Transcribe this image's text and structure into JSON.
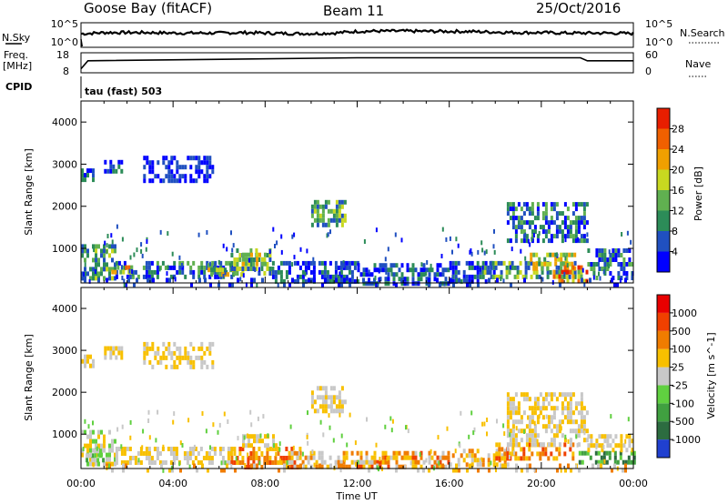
{
  "header": {
    "station": "Goose Bay (fitACF)",
    "beam": "Beam 11",
    "date": "25/Oct/2016"
  },
  "noise_panel": {
    "left_label": "N.Sky",
    "right_label": "N.Search",
    "left_ticks": [
      "10^5",
      "10^0"
    ],
    "right_ticks": [
      "10^5",
      "10^0"
    ]
  },
  "freq_panel": {
    "left_label_1": "Freq.",
    "left_label_2": "[MHz]",
    "right_label": "Nave",
    "left_ticks": [
      "18",
      "8"
    ],
    "right_ticks": [
      "60",
      "0"
    ]
  },
  "cpid": {
    "label": "CPID",
    "value": "tau (fast) 503"
  },
  "chart_data": [
    {
      "type": "line",
      "name": "noise",
      "x_hours": [
        0,
        1,
        2,
        3,
        4,
        5,
        6,
        7,
        8,
        9,
        10,
        11,
        12,
        13,
        14,
        15,
        16,
        17,
        18,
        19,
        20,
        21,
        22,
        23,
        24
      ],
      "y_frac": [
        0.55,
        0.6,
        0.6,
        0.6,
        0.58,
        0.58,
        0.58,
        0.6,
        0.58,
        0.56,
        0.56,
        0.58,
        0.65,
        0.66,
        0.66,
        0.65,
        0.65,
        0.64,
        0.62,
        0.6,
        0.6,
        0.58,
        0.58,
        0.58,
        0.56
      ]
    },
    {
      "type": "line",
      "name": "frequency",
      "x_hours": [
        0,
        0.3,
        12,
        21.7,
        22,
        24
      ],
      "y_frac": [
        0.2,
        0.6,
        0.75,
        0.75,
        0.6,
        0.6
      ]
    },
    {
      "type": "heatmap",
      "title": "Power",
      "xlabel": "Time UT",
      "ylabel": "Slant Range [km]",
      "colorbar_label": "Power [dB]",
      "colorbar_ticks": [
        "28",
        "24",
        "20",
        "16",
        "12",
        "8",
        "4"
      ],
      "colors": [
        "#0000ff",
        "#2050c0",
        "#2c8c58",
        "#60b050",
        "#c8d820",
        "#f0a000",
        "#f06000",
        "#e81e00"
      ],
      "x_ticks": [
        "00:00",
        "04:00",
        "08:00",
        "12:00",
        "16:00",
        "20:00",
        "00:00"
      ],
      "y_ticks": [
        "1000",
        "2000",
        "3000",
        "4000"
      ],
      "xlim": [
        0,
        24
      ],
      "ylim": [
        180,
        4500
      ],
      "regions": [
        {
          "x": [
            0,
            1.5
          ],
          "y": [
            300,
            1100
          ],
          "level": [
            1,
            4
          ]
        },
        {
          "x": [
            1.5,
            4
          ],
          "y": [
            300,
            700
          ],
          "level": [
            0,
            3
          ]
        },
        {
          "x": [
            1.2,
            2.2
          ],
          "y": [
            400,
            600
          ],
          "level": [
            3,
            6
          ]
        },
        {
          "x": [
            4,
            6.5
          ],
          "y": [
            350,
            700
          ],
          "level": [
            0,
            3
          ]
        },
        {
          "x": [
            5.5,
            7
          ],
          "y": [
            350,
            650
          ],
          "level": [
            2,
            5
          ]
        },
        {
          "x": [
            6.5,
            8.3
          ],
          "y": [
            400,
            1000
          ],
          "level": [
            1,
            4
          ]
        },
        {
          "x": [
            7,
            8
          ],
          "y": [
            600,
            900
          ],
          "level": [
            3,
            5
          ]
        },
        {
          "x": [
            8.3,
            12
          ],
          "y": [
            200,
            700
          ],
          "level": [
            0,
            2
          ]
        },
        {
          "x": [
            10,
            11.5
          ],
          "y": [
            1600,
            2150
          ],
          "level": [
            1,
            4
          ]
        },
        {
          "x": [
            12,
            16
          ],
          "y": [
            200,
            650
          ],
          "level": [
            0,
            2
          ]
        },
        {
          "x": [
            16,
            18
          ],
          "y": [
            220,
            700
          ],
          "level": [
            0,
            2
          ]
        },
        {
          "x": [
            17.5,
            21.5
          ],
          "y": [
            300,
            700
          ],
          "level": [
            1,
            4
          ]
        },
        {
          "x": [
            19.5,
            21.5
          ],
          "y": [
            500,
            900
          ],
          "level": [
            2,
            5
          ]
        },
        {
          "x": [
            18.5,
            22
          ],
          "y": [
            1200,
            2100
          ],
          "level": [
            0,
            3
          ]
        },
        {
          "x": [
            20.5,
            22
          ],
          "y": [
            250,
            600
          ],
          "level": [
            3,
            7
          ]
        },
        {
          "x": [
            22,
            24
          ],
          "y": [
            300,
            1000
          ],
          "level": [
            0,
            3
          ]
        },
        {
          "x": [
            1,
            1.8
          ],
          "y": [
            2800,
            3100
          ],
          "level": [
            0,
            2
          ]
        },
        {
          "x": [
            2.7,
            5.7
          ],
          "y": [
            2600,
            3200
          ],
          "level": [
            0,
            1
          ]
        },
        {
          "x": [
            0,
            0.5
          ],
          "y": [
            2600,
            2900
          ],
          "level": [
            0,
            2
          ]
        },
        {
          "x": [
            0,
            24
          ],
          "y": [
            180,
            300
          ],
          "level": [
            0,
            1
          ]
        }
      ]
    },
    {
      "type": "heatmap",
      "title": "Velocity",
      "xlabel": "Time UT",
      "ylabel": "Slant Range [km]",
      "colorbar_label": "Velocity [m s^-1]",
      "colorbar_ticks": [
        "1000",
        "500",
        "100",
        "25",
        "-25",
        "-100",
        "-500",
        "-1000"
      ],
      "colors": [
        "#2040d0",
        "#2c6c40",
        "#40a040",
        "#60d040",
        "#c8c8c8",
        "#f8c000",
        "#f07c00",
        "#f04000",
        "#e80000"
      ],
      "x_ticks": [
        "00:00",
        "04:00",
        "08:00",
        "12:00",
        "16:00",
        "20:00",
        "00:00"
      ],
      "y_ticks": [
        "1000",
        "2000",
        "3000",
        "4000"
      ],
      "xlim": [
        0,
        24
      ],
      "ylim": [
        180,
        4500
      ],
      "regions": [
        {
          "x": [
            0,
            1.5
          ],
          "y": [
            300,
            1100
          ],
          "level": [
            3,
            5
          ]
        },
        {
          "x": [
            0.2,
            1
          ],
          "y": [
            400,
            650
          ],
          "level": [
            2,
            4
          ]
        },
        {
          "x": [
            1.5,
            6.5
          ],
          "y": [
            300,
            700
          ],
          "level": [
            4,
            5
          ]
        },
        {
          "x": [
            6.5,
            9.5
          ],
          "y": [
            250,
            700
          ],
          "level": [
            5,
            7
          ]
        },
        {
          "x": [
            7,
            8.5
          ],
          "y": [
            700,
            1000
          ],
          "level": [
            4,
            5
          ]
        },
        {
          "x": [
            9,
            12
          ],
          "y": [
            200,
            600
          ],
          "level": [
            4,
            6
          ]
        },
        {
          "x": [
            10,
            11.5
          ],
          "y": [
            1600,
            2150
          ],
          "level": [
            4,
            5
          ]
        },
        {
          "x": [
            12,
            16
          ],
          "y": [
            200,
            600
          ],
          "level": [
            4,
            7
          ]
        },
        {
          "x": [
            16,
            18.5
          ],
          "y": [
            250,
            650
          ],
          "level": [
            4,
            6
          ]
        },
        {
          "x": [
            18,
            21.5
          ],
          "y": [
            400,
            800
          ],
          "level": [
            5,
            7
          ]
        },
        {
          "x": [
            18.5,
            22
          ],
          "y": [
            800,
            2000
          ],
          "level": [
            4,
            5
          ]
        },
        {
          "x": [
            21.5,
            24
          ],
          "y": [
            300,
            600
          ],
          "level": [
            1,
            3
          ]
        },
        {
          "x": [
            22,
            24
          ],
          "y": [
            600,
            1000
          ],
          "level": [
            4,
            5
          ]
        },
        {
          "x": [
            1,
            1.8
          ],
          "y": [
            2800,
            3100
          ],
          "level": [
            4,
            5
          ]
        },
        {
          "x": [
            2.7,
            5.7
          ],
          "y": [
            2600,
            3200
          ],
          "level": [
            4,
            5
          ]
        },
        {
          "x": [
            0,
            0.5
          ],
          "y": [
            2600,
            2900
          ],
          "level": [
            4,
            5
          ]
        },
        {
          "x": [
            0,
            24
          ],
          "y": [
            180,
            300
          ],
          "level": [
            4,
            6
          ]
        }
      ]
    }
  ]
}
